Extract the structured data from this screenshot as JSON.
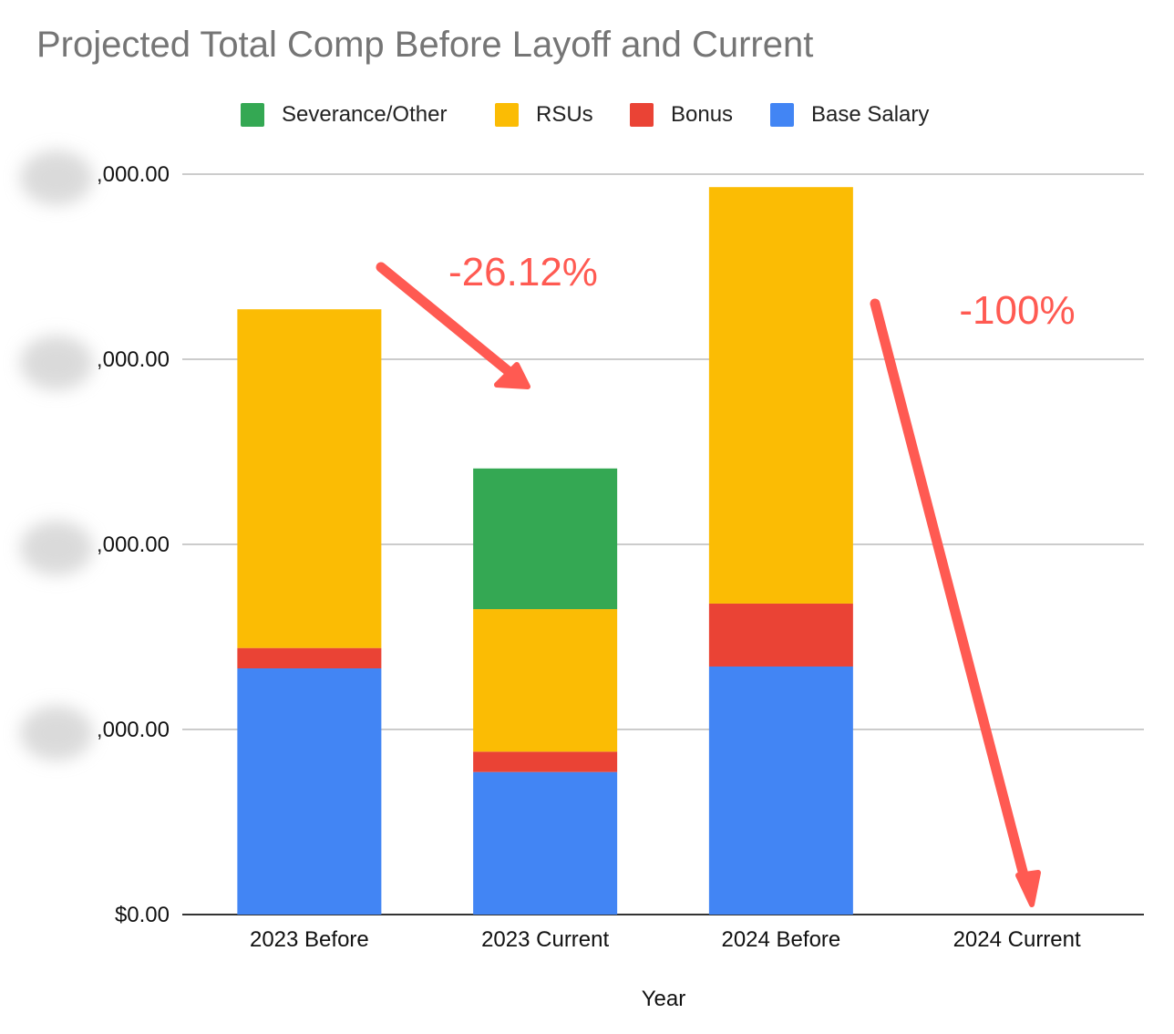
{
  "chart_data": {
    "type": "bar",
    "stacked": true,
    "title": "Projected Total Comp Before Layoff and Current",
    "xlabel": "Year",
    "ylabel": "",
    "categories": [
      "2023 Before",
      "2023 Current",
      "2024 Before",
      "2024 Current"
    ],
    "ylim": [
      0,
      4
    ],
    "y_ticks": [
      0,
      1,
      2,
      3,
      4
    ],
    "y_tick_labels": [
      "$0.00",
      ",000.00",
      ",000.00",
      ",000.00",
      ",000.00"
    ],
    "grid": true,
    "legend_position": "top",
    "series": [
      {
        "name": "Base Salary",
        "color": "#4285f4",
        "values": [
          1.33,
          0.77,
          1.34,
          0
        ]
      },
      {
        "name": "Bonus",
        "color": "#ea4335",
        "values": [
          0.11,
          0.11,
          0.34,
          0
        ]
      },
      {
        "name": "RSUs",
        "color": "#fbbc04",
        "values": [
          1.83,
          0.77,
          2.25,
          0
        ]
      },
      {
        "name": "Severance/Other",
        "color": "#34a853",
        "values": [
          0,
          0.76,
          0,
          0
        ]
      }
    ],
    "legend_order": [
      "Severance/Other",
      "RSUs",
      "Bonus",
      "Base Salary"
    ],
    "annotations": [
      {
        "text": "-26.12%",
        "color": "#ff5a52"
      },
      {
        "text": "-100%",
        "color": "#ff5a52"
      }
    ]
  }
}
